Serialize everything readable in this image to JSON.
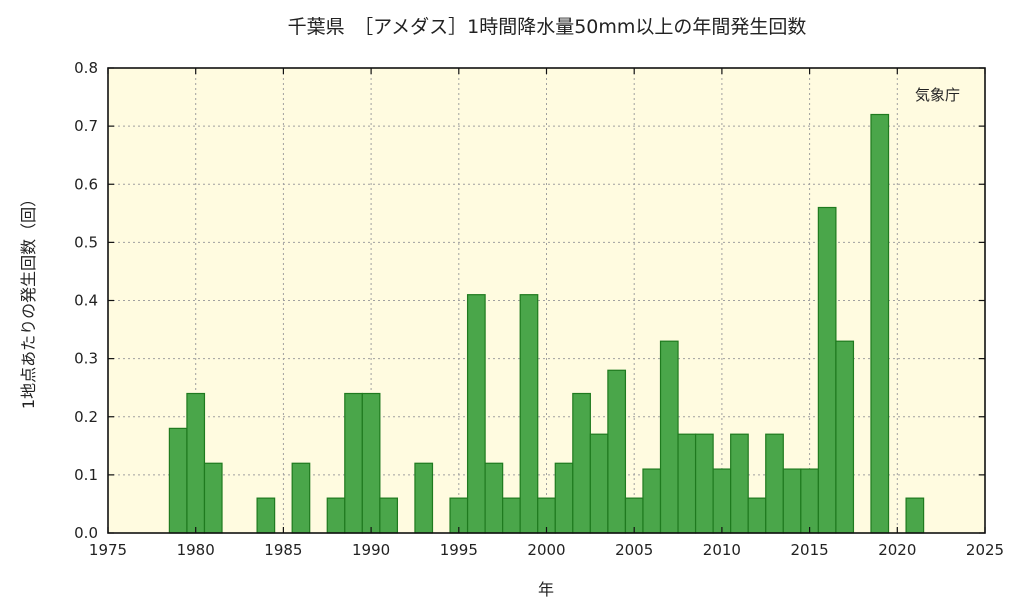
{
  "chart_data": {
    "type": "bar",
    "title": "千葉県　［アメダス］1時間降水量50mm以上の年間発生回数",
    "xlabel": "年",
    "ylabel": "1地点あたりの発生回数（回）",
    "credit": "気象庁",
    "xlim": [
      1975,
      2025
    ],
    "ylim": [
      0,
      0.8
    ],
    "xticks": [
      1975,
      1980,
      1985,
      1990,
      1995,
      2000,
      2005,
      2010,
      2015,
      2020,
      2025
    ],
    "yticks": [
      "0.0",
      "0.1",
      "0.2",
      "0.3",
      "0.4",
      "0.5",
      "0.6",
      "0.7",
      "0.8"
    ],
    "grid": true,
    "colors": {
      "bar_fill": "#4aa64a",
      "bar_edge": "#1f7a1f",
      "plot_bg": "#fffbe0"
    },
    "x": [
      1979,
      1980,
      1981,
      1982,
      1983,
      1984,
      1985,
      1986,
      1987,
      1988,
      1989,
      1990,
      1991,
      1992,
      1993,
      1994,
      1995,
      1996,
      1997,
      1998,
      1999,
      2000,
      2001,
      2002,
      2003,
      2004,
      2005,
      2006,
      2007,
      2008,
      2009,
      2010,
      2011,
      2012,
      2013,
      2014,
      2015,
      2016,
      2017,
      2018,
      2019,
      2020,
      2021
    ],
    "values": [
      0.18,
      0.24,
      0.12,
      0,
      0,
      0.06,
      0,
      0.12,
      0,
      0.06,
      0.24,
      0.24,
      0.06,
      0,
      0.12,
      0,
      0.06,
      0.41,
      0.12,
      0.06,
      0.41,
      0.06,
      0.12,
      0.24,
      0.17,
      0.28,
      0.06,
      0.11,
      0.33,
      0.17,
      0.17,
      0.11,
      0.17,
      0.06,
      0.17,
      0.11,
      0.11,
      0.56,
      0.33,
      0,
      0.72,
      0,
      0.06
    ]
  }
}
